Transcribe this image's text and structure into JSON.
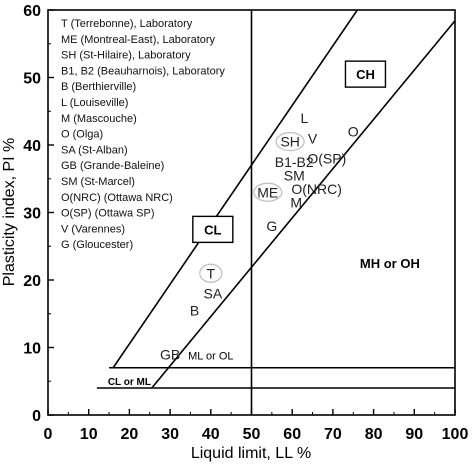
{
  "chart_data": {
    "type": "scatter",
    "title": "",
    "xlabel": "Liquid limit, LL %",
    "ylabel": "Plasticity index, PI %",
    "xlim": [
      0,
      100
    ],
    "ylim": [
      0,
      60
    ],
    "x_ticks": [
      "0",
      "10",
      "20",
      "30",
      "40",
      "50",
      "60",
      "70",
      "80",
      "90",
      "100"
    ],
    "y_ticks": [
      "0",
      "10",
      "20",
      "30",
      "40",
      "50",
      "60"
    ],
    "grid": false,
    "legend_position": "top-left",
    "legend_lines": [
      "T (Terrebonne), Laboratory",
      "ME (Montreal-East), Laboratory",
      "SH (St-Hilaire), Laboratory",
      "B1, B2 (Beauharnois), Laboratory",
      "B (Berthierville)",
      "L (Louiseville)",
      "M (Mascouche)",
      "O (Olga)",
      "SA (St-Alban)",
      "GB (Grande-Baleine)",
      "SM (St-Marcel)",
      "O(NRC) (Ottawa NRC)",
      "O(SP) (Ottawa SP)",
      "V (Varennes)",
      "G (Gloucester)"
    ],
    "zones": [
      {
        "label": "CH",
        "x": 78,
        "y": 50.5,
        "boxed": true
      },
      {
        "label": "CL",
        "x": 40.5,
        "y": 27.5,
        "boxed": true
      },
      {
        "label": "MH or OH",
        "x": 84,
        "y": 22.5,
        "boxed": false
      },
      {
        "label": "ML or OL",
        "x": 40,
        "y": 9,
        "boxed": false
      },
      {
        "label": "CL or ML",
        "x": 20,
        "y": 5.2,
        "boxed": false
      }
    ],
    "reference_lines": [
      {
        "name": "A-line",
        "x": [
          25.5,
          100
        ],
        "y": [
          4,
          58.4
        ]
      },
      {
        "name": "U-line",
        "x": [
          16,
          76
        ],
        "y": [
          7,
          60
        ]
      },
      {
        "name": "LL=50",
        "x": [
          50,
          50
        ],
        "y": [
          0,
          60
        ]
      },
      {
        "name": "PI=7",
        "x": [
          15,
          100
        ],
        "y": [
          7,
          7
        ]
      },
      {
        "name": "PI=4",
        "x": [
          12,
          100
        ],
        "y": [
          4,
          4
        ]
      }
    ],
    "points": [
      {
        "label": "T",
        "x": 40,
        "y": 21,
        "circled": true
      },
      {
        "label": "SA",
        "x": 40.5,
        "y": 18,
        "circled": false
      },
      {
        "label": "B",
        "x": 36,
        "y": 15.5,
        "circled": false
      },
      {
        "label": "GB",
        "x": 30,
        "y": 9,
        "circled": false
      },
      {
        "label": "G",
        "x": 55,
        "y": 28,
        "circled": false
      },
      {
        "label": "ME",
        "x": 54,
        "y": 33,
        "circled": true
      },
      {
        "label": "M",
        "x": 61,
        "y": 31.5,
        "circled": false
      },
      {
        "label": "SM",
        "x": 60.5,
        "y": 35.5,
        "circled": false
      },
      {
        "label": "O(NRC)",
        "x": 66,
        "y": 33.5,
        "circled": false
      },
      {
        "label": "B1-B2",
        "x": 60.5,
        "y": 37.5,
        "circled": false
      },
      {
        "label": "O(SP)",
        "x": 68.5,
        "y": 38,
        "circled": false
      },
      {
        "label": "SH",
        "x": 59.5,
        "y": 40.5,
        "circled": true
      },
      {
        "label": "V",
        "x": 65,
        "y": 41,
        "circled": false
      },
      {
        "label": "L",
        "x": 63,
        "y": 44,
        "circled": false
      },
      {
        "label": "O",
        "x": 75,
        "y": 42,
        "circled": false
      }
    ]
  }
}
